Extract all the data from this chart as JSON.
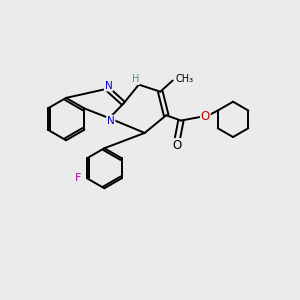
{
  "background_color": "#ebebeb",
  "figsize": [
    3.0,
    3.0
  ],
  "dpi": 100,
  "bond_lw": 1.4,
  "N_color": "#0000cc",
  "H_color": "#4a9090",
  "O_color": "#cc0000",
  "F_color": "#aa00aa",
  "black": "#000000",
  "xlim": [
    0,
    10
  ],
  "ylim": [
    0,
    10
  ]
}
